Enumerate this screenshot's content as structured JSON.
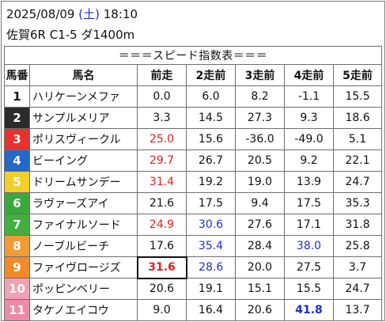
{
  "header": {
    "date": "2025/08/09",
    "dow_open": "(",
    "dow": "土",
    "dow_close": ")",
    "time": "18:10",
    "race_info": "佐賀6R C1-5 ダ1400m"
  },
  "table": {
    "title": "＝＝＝スピード指数表＝＝＝",
    "columns": [
      "馬番",
      "馬名",
      "前走",
      "2走前",
      "3走前",
      "4走前",
      "5走前"
    ],
    "rows": [
      {
        "num": "1",
        "name": "ハリケーンメファ",
        "vals": [
          "0.0",
          "6.0",
          "8.2",
          "-1.1",
          "15.5"
        ],
        "bg": "#ffffff",
        "fg": "#111111",
        "colors": [
          "",
          "",
          "",
          "",
          ""
        ],
        "bold": [
          false,
          false,
          false,
          false,
          false
        ]
      },
      {
        "num": "2",
        "name": "サンプルメリア",
        "vals": [
          "3.3",
          "14.5",
          "27.3",
          "9.3",
          "18.6"
        ],
        "bg": "#2b2b2b",
        "fg": "#ffffff",
        "colors": [
          "",
          "",
          "",
          "",
          ""
        ],
        "bold": [
          false,
          false,
          false,
          false,
          false
        ]
      },
      {
        "num": "3",
        "name": "ポリスヴィークル",
        "vals": [
          "25.0",
          "15.6",
          "-36.0",
          "-49.0",
          "5.1"
        ],
        "bg": "#e8312f",
        "fg": "#ffffff",
        "colors": [
          "red",
          "",
          "",
          "",
          ""
        ],
        "bold": [
          false,
          false,
          false,
          false,
          false
        ]
      },
      {
        "num": "4",
        "name": "ビーイング",
        "vals": [
          "29.7",
          "26.7",
          "20.5",
          "9.2",
          "22.1"
        ],
        "bg": "#2468c8",
        "fg": "#ffffff",
        "colors": [
          "red",
          "",
          "",
          "",
          ""
        ],
        "bold": [
          false,
          false,
          false,
          false,
          false
        ]
      },
      {
        "num": "5",
        "name": "ドリームサンデー",
        "vals": [
          "31.4",
          "19.2",
          "19.0",
          "13.9",
          "24.7"
        ],
        "bg": "#f2d029",
        "fg": "#ffffff",
        "colors": [
          "red",
          "",
          "",
          "",
          ""
        ],
        "bold": [
          false,
          false,
          false,
          false,
          false
        ]
      },
      {
        "num": "6",
        "name": "ラヴァーズアイ",
        "vals": [
          "21.6",
          "17.5",
          "9.4",
          "17.5",
          "35.3"
        ],
        "bg": "#3aa83a",
        "fg": "#ffffff",
        "colors": [
          "",
          "",
          "",
          "",
          ""
        ],
        "bold": [
          false,
          false,
          false,
          false,
          false
        ]
      },
      {
        "num": "7",
        "name": "ファイナルソード",
        "vals": [
          "24.9",
          "30.6",
          "27.6",
          "17.1",
          "31.8"
        ],
        "bg": "#41b03f",
        "fg": "#ffffff",
        "colors": [
          "red",
          "blue",
          "",
          "",
          ""
        ],
        "bold": [
          false,
          false,
          false,
          false,
          false
        ]
      },
      {
        "num": "8",
        "name": "ノーブルビーチ",
        "vals": [
          "17.6",
          "35.4",
          "28.4",
          "38.0",
          "25.8"
        ],
        "bg": "#f29a38",
        "fg": "#ffffff",
        "colors": [
          "",
          "blue",
          "",
          "blue",
          ""
        ],
        "bold": [
          false,
          false,
          false,
          false,
          false
        ]
      },
      {
        "num": "9",
        "name": "ファイヴロージズ",
        "vals": [
          "31.6",
          "28.6",
          "20.0",
          "27.5",
          "3.7"
        ],
        "bg": "#f28a2a",
        "fg": "#ffffff",
        "colors": [
          "red",
          "blue",
          "",
          "",
          ""
        ],
        "bold": [
          true,
          false,
          false,
          false,
          false
        ]
      },
      {
        "num": "10",
        "name": "ポッピンベリー",
        "vals": [
          "20.6",
          "19.1",
          "15.1",
          "15.5",
          "24.7"
        ],
        "bg": "#f2a0b4",
        "fg": "#ffffff",
        "colors": [
          "",
          "",
          "",
          "",
          ""
        ],
        "bold": [
          false,
          false,
          false,
          false,
          false
        ]
      },
      {
        "num": "11",
        "name": "タケノエイコウ",
        "vals": [
          "9.0",
          "16.4",
          "20.6",
          "41.8",
          "13.7"
        ],
        "bg": "#f08aa4",
        "fg": "#ffffff",
        "colors": [
          "",
          "",
          "",
          "blue",
          ""
        ],
        "bold": [
          false,
          false,
          false,
          true,
          false
        ]
      }
    ]
  }
}
